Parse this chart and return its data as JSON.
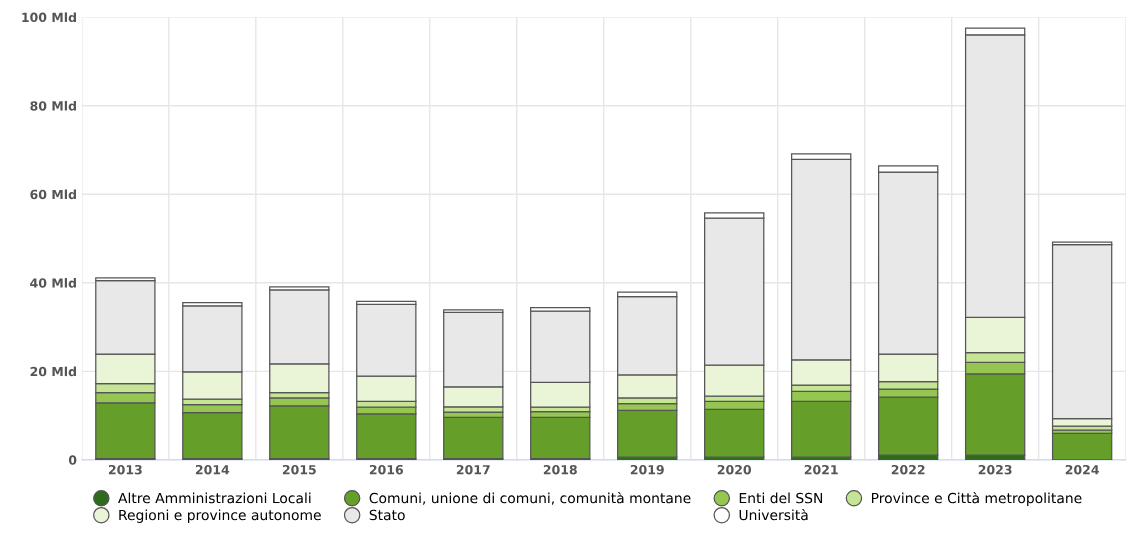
{
  "chart_data": {
    "type": "bar",
    "stacked": true,
    "categories": [
      "2013",
      "2014",
      "2015",
      "2016",
      "2017",
      "2018",
      "2019",
      "2020",
      "2021",
      "2022",
      "2023",
      "2024"
    ],
    "series": [
      {
        "name": "Altre Amministrazioni Locali",
        "color": "#2e6b1a",
        "values": [
          0.3,
          0.3,
          0.3,
          0.3,
          0.3,
          0.3,
          0.6,
          0.6,
          0.6,
          1.1,
          1.1,
          null
        ]
      },
      {
        "name": "Comuni, unione di comuni, comunità montane",
        "color": "#659f2a",
        "values": [
          12.6,
          10.4,
          11.9,
          10.1,
          9.3,
          9.3,
          10.6,
          10.8,
          12.6,
          13.1,
          18.3,
          6.0
        ]
      },
      {
        "name": "Enti del SSN",
        "color": "#94c651",
        "values": [
          2.3,
          1.8,
          1.8,
          1.5,
          1.2,
          1.3,
          1.5,
          1.8,
          2.3,
          1.8,
          2.6,
          0.7
        ]
      },
      {
        "name": "Province e Città metropolitane",
        "color": "#c5e494",
        "values": [
          2.0,
          1.2,
          1.2,
          1.3,
          1.2,
          1.0,
          1.3,
          1.2,
          1.4,
          1.7,
          2.2,
          0.9
        ]
      },
      {
        "name": "Regioni e province autonome",
        "color": "#eaf5d8",
        "values": [
          6.7,
          6.2,
          6.5,
          5.7,
          4.5,
          5.6,
          5.2,
          7.0,
          5.7,
          6.2,
          8.0,
          1.7
        ]
      },
      {
        "name": "Stato",
        "color": "#e8e8e8",
        "values": [
          16.6,
          14.9,
          16.7,
          16.2,
          16.8,
          16.1,
          17.7,
          33.2,
          45.3,
          41.1,
          63.8,
          39.3
        ]
      },
      {
        "name": "Università",
        "color": "#ffffff",
        "values": [
          0.6,
          0.7,
          0.7,
          0.7,
          0.6,
          0.8,
          1.0,
          1.2,
          1.2,
          1.4,
          1.5,
          0.6
        ]
      }
    ],
    "ylim": [
      0,
      100
    ],
    "yticks": [
      {
        "value": 0,
        "label": "0"
      },
      {
        "value": 20,
        "label": "20 Mld"
      },
      {
        "value": 40,
        "label": "40 Mld"
      },
      {
        "value": 60,
        "label": "60 Mld"
      },
      {
        "value": 80,
        "label": "80 Mld"
      },
      {
        "value": 100,
        "label": "100 Mld"
      }
    ],
    "grid": true,
    "legend": "bottom",
    "marker": "circle"
  }
}
